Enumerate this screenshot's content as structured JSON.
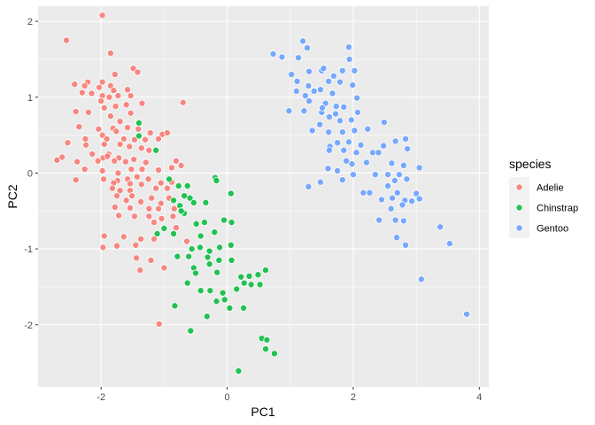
{
  "chart_data": {
    "type": "scatter",
    "title": "",
    "xlabel": "PC1",
    "ylabel": "PC2",
    "xlim": [
      -3.0,
      4.15
    ],
    "ylim": [
      -2.82,
      2.2
    ],
    "x_ticks": [
      -2,
      0,
      2,
      4
    ],
    "y_ticks": [
      -2,
      -1,
      0,
      1,
      2
    ],
    "grid": true,
    "legend": {
      "title": "species",
      "position": "right"
    },
    "series": [
      {
        "name": "Adelie",
        "color": "#F8766D",
        "points": [
          [
            -1.98,
            2.08
          ],
          [
            -2.55,
            1.75
          ],
          [
            -1.85,
            1.58
          ],
          [
            -1.49,
            1.38
          ],
          [
            -1.78,
            1.3
          ],
          [
            -1.42,
            1.33
          ],
          [
            -2.21,
            1.2
          ],
          [
            -2.42,
            1.17
          ],
          [
            -2.26,
            1.15
          ],
          [
            -1.98,
            1.2
          ],
          [
            -2.03,
            1.13
          ],
          [
            -1.85,
            1.15
          ],
          [
            -1.8,
            1.09
          ],
          [
            -1.58,
            1.1
          ],
          [
            -1.53,
            1.02
          ],
          [
            -2.3,
            1.06
          ],
          [
            -2.15,
            1.05
          ],
          [
            -1.98,
            1.02
          ],
          [
            -1.87,
            1.0
          ],
          [
            -1.73,
            1.02
          ],
          [
            -0.7,
            0.93
          ],
          [
            -2.0,
            0.95
          ],
          [
            -1.95,
            0.86
          ],
          [
            -1.77,
            0.88
          ],
          [
            -1.6,
            0.9
          ],
          [
            -1.35,
            0.92
          ],
          [
            -2.4,
            0.81
          ],
          [
            -2.2,
            0.8
          ],
          [
            -1.85,
            0.75
          ],
          [
            -1.7,
            0.68
          ],
          [
            -1.53,
            0.79
          ],
          [
            -2.35,
            0.61
          ],
          [
            -2.04,
            0.58
          ],
          [
            -1.81,
            0.59
          ],
          [
            -1.58,
            0.6
          ],
          [
            -1.41,
            0.58
          ],
          [
            -1.98,
            0.5
          ],
          [
            -1.76,
            0.55
          ],
          [
            -1.22,
            0.53
          ],
          [
            -1.03,
            0.51
          ],
          [
            -0.95,
            0.53
          ],
          [
            -1.09,
            0.45
          ],
          [
            -2.25,
            0.45
          ],
          [
            -1.91,
            0.45
          ],
          [
            -1.64,
            0.45
          ],
          [
            -1.47,
            0.44
          ],
          [
            -1.3,
            0.44
          ],
          [
            -2.53,
            0.4
          ],
          [
            -2.24,
            0.37
          ],
          [
            -1.95,
            0.38
          ],
          [
            -1.7,
            0.38
          ],
          [
            -1.55,
            0.35
          ],
          [
            -1.36,
            0.33
          ],
          [
            -1.24,
            0.3
          ],
          [
            -1.88,
            0.25
          ],
          [
            -2.14,
            0.25
          ],
          [
            -1.97,
            0.2
          ],
          [
            -1.72,
            0.2
          ],
          [
            -1.48,
            0.18
          ],
          [
            -1.9,
            0.22
          ],
          [
            -2.62,
            0.21
          ],
          [
            -2.05,
            0.16
          ],
          [
            -1.79,
            0.16
          ],
          [
            -1.61,
            0.15
          ],
          [
            -1.29,
            0.14
          ],
          [
            -2.7,
            0.17
          ],
          [
            -2.38,
            0.15
          ],
          [
            -0.81,
            0.16
          ],
          [
            -2.26,
            0.05
          ],
          [
            -1.98,
            0.03
          ],
          [
            -1.73,
            0.0
          ],
          [
            -1.52,
            0.05
          ],
          [
            -1.35,
            0.05
          ],
          [
            -0.73,
            0.1
          ],
          [
            -0.88,
            0.07
          ],
          [
            -1.09,
            0.04
          ],
          [
            -1.96,
            -0.08
          ],
          [
            -1.74,
            -0.1
          ],
          [
            -1.58,
            -0.08
          ],
          [
            -1.43,
            -0.05
          ],
          [
            -1.25,
            -0.08
          ],
          [
            -2.4,
            -0.09
          ],
          [
            -1.8,
            -0.13
          ],
          [
            -1.54,
            -0.14
          ],
          [
            -1.36,
            -0.15
          ],
          [
            -1.05,
            -0.13
          ],
          [
            -0.88,
            -0.12
          ],
          [
            -1.82,
            -0.2
          ],
          [
            -1.7,
            -0.23
          ],
          [
            -1.54,
            -0.23
          ],
          [
            -1.13,
            -0.2
          ],
          [
            -0.95,
            -0.2
          ],
          [
            -1.75,
            -0.3
          ],
          [
            -1.51,
            -0.3
          ],
          [
            -1.2,
            -0.33
          ],
          [
            -0.92,
            -0.33
          ],
          [
            -1.6,
            -0.36
          ],
          [
            -1.37,
            -0.38
          ],
          [
            -1.05,
            -0.4
          ],
          [
            -1.78,
            -0.45
          ],
          [
            -1.54,
            -0.46
          ],
          [
            -1.24,
            -0.47
          ],
          [
            -1.09,
            -0.47
          ],
          [
            -0.84,
            -0.47
          ],
          [
            -1.72,
            -0.56
          ],
          [
            -1.47,
            -0.57
          ],
          [
            -1.24,
            -0.57
          ],
          [
            -1.04,
            -0.6
          ],
          [
            -1.16,
            -0.65
          ],
          [
            -0.86,
            -0.57
          ],
          [
            -0.81,
            -0.72
          ],
          [
            -1.95,
            -0.83
          ],
          [
            -1.64,
            -0.84
          ],
          [
            -1.37,
            -0.87
          ],
          [
            -1.16,
            -0.87
          ],
          [
            -1.97,
            -0.98
          ],
          [
            -1.75,
            -0.96
          ],
          [
            -1.45,
            -0.95
          ],
          [
            -0.64,
            -0.9
          ],
          [
            -1.44,
            -1.12
          ],
          [
            -1.38,
            -1.28
          ],
          [
            -1.21,
            -1.15
          ],
          [
            -1.0,
            -1.25
          ],
          [
            -1.08,
            -1.99
          ]
        ]
      },
      {
        "name": "Chinstrap",
        "color": "#00BA38",
        "points": [
          [
            -1.4,
            0.66
          ],
          [
            -1.4,
            0.49
          ],
          [
            -1.13,
            0.3
          ],
          [
            -0.92,
            -0.08
          ],
          [
            -0.63,
            -0.17
          ],
          [
            -0.77,
            -0.17
          ],
          [
            -0.19,
            -0.06
          ],
          [
            -0.17,
            -0.1
          ],
          [
            -0.68,
            -0.3
          ],
          [
            -0.59,
            -0.33
          ],
          [
            -0.85,
            -0.36
          ],
          [
            -0.75,
            -0.43
          ],
          [
            -0.53,
            -0.39
          ],
          [
            -0.68,
            -0.53
          ],
          [
            -0.73,
            -0.5
          ],
          [
            -0.34,
            -0.39
          ],
          [
            0.06,
            -0.27
          ],
          [
            -1.0,
            -0.73
          ],
          [
            -1.11,
            -0.8
          ],
          [
            -0.85,
            -0.8
          ],
          [
            -0.36,
            -0.65
          ],
          [
            -0.49,
            -0.67
          ],
          [
            -0.05,
            -0.62
          ],
          [
            -0.2,
            -0.78
          ],
          [
            -0.42,
            -0.83
          ],
          [
            0.07,
            -0.65
          ],
          [
            -0.43,
            -0.98
          ],
          [
            -0.56,
            -1.0
          ],
          [
            -0.28,
            -1.03
          ],
          [
            -0.12,
            -0.98
          ],
          [
            0.06,
            -0.95
          ],
          [
            -0.79,
            -1.1
          ],
          [
            -0.61,
            -1.1
          ],
          [
            -0.31,
            -1.11
          ],
          [
            -0.13,
            -1.15
          ],
          [
            0.07,
            -1.15
          ],
          [
            -0.53,
            -1.25
          ],
          [
            -0.28,
            -1.2
          ],
          [
            -0.5,
            -1.32
          ],
          [
            -0.16,
            -1.31
          ],
          [
            0.22,
            -1.37
          ],
          [
            0.35,
            -1.36
          ],
          [
            0.49,
            -1.34
          ],
          [
            0.61,
            -1.28
          ],
          [
            -0.63,
            -1.45
          ],
          [
            -0.42,
            -1.55
          ],
          [
            -0.27,
            -1.55
          ],
          [
            -0.07,
            -1.58
          ],
          [
            0.15,
            -1.53
          ],
          [
            0.27,
            -1.45
          ],
          [
            0.38,
            -1.47
          ],
          [
            0.52,
            -1.47
          ],
          [
            -0.04,
            -1.67
          ],
          [
            -0.17,
            -1.69
          ],
          [
            0.04,
            -1.78
          ],
          [
            0.26,
            -1.78
          ],
          [
            -0.83,
            -1.75
          ],
          [
            -0.32,
            -1.89
          ],
          [
            -0.58,
            -2.08
          ],
          [
            0.55,
            -2.18
          ],
          [
            0.63,
            -2.2
          ],
          [
            0.61,
            -2.32
          ],
          [
            0.75,
            -2.38
          ],
          [
            0.18,
            -2.61
          ]
        ]
      },
      {
        "name": "Gentoo",
        "color": "#619CFF",
        "points": [
          [
            0.73,
            1.57
          ],
          [
            0.87,
            1.53
          ],
          [
            1.2,
            1.74
          ],
          [
            1.27,
            1.65
          ],
          [
            1.13,
            1.52
          ],
          [
            1.3,
            1.34
          ],
          [
            1.02,
            1.3
          ],
          [
            1.11,
            1.21
          ],
          [
            1.5,
            1.35
          ],
          [
            1.53,
            1.38
          ],
          [
            1.69,
            1.28
          ],
          [
            1.83,
            1.35
          ],
          [
            1.93,
            1.66
          ],
          [
            1.94,
            1.5
          ],
          [
            2.02,
            1.35
          ],
          [
            1.61,
            1.21
          ],
          [
            1.79,
            1.2
          ],
          [
            1.99,
            1.16
          ],
          [
            1.29,
            1.15
          ],
          [
            1.48,
            1.1
          ],
          [
            1.67,
            1.05
          ],
          [
            1.1,
            1.08
          ],
          [
            1.24,
            1.02
          ],
          [
            1.38,
            1.08
          ],
          [
            1.3,
            0.95
          ],
          [
            1.56,
            0.92
          ],
          [
            1.73,
            0.88
          ],
          [
            1.85,
            0.87
          ],
          [
            2.06,
            0.99
          ],
          [
            2.07,
            0.8
          ],
          [
            1.72,
            0.78
          ],
          [
            1.5,
            0.8
          ],
          [
            0.98,
            0.82
          ],
          [
            1.22,
            0.82
          ],
          [
            1.51,
            0.86
          ],
          [
            1.62,
            0.74
          ],
          [
            1.79,
            0.69
          ],
          [
            1.97,
            0.7
          ],
          [
            1.47,
            0.64
          ],
          [
            1.35,
            0.56
          ],
          [
            1.61,
            0.54
          ],
          [
            1.83,
            0.54
          ],
          [
            2.02,
            0.56
          ],
          [
            2.23,
            0.58
          ],
          [
            2.49,
            0.67
          ],
          [
            1.75,
            0.4
          ],
          [
            1.93,
            0.41
          ],
          [
            2.12,
            0.37
          ],
          [
            2.48,
            0.36
          ],
          [
            2.67,
            0.42
          ],
          [
            2.83,
            0.45
          ],
          [
            2.86,
            0.32
          ],
          [
            1.63,
            0.35
          ],
          [
            1.62,
            0.3
          ],
          [
            1.85,
            0.3
          ],
          [
            2.05,
            0.27
          ],
          [
            2.31,
            0.27
          ],
          [
            2.4,
            0.27
          ],
          [
            1.98,
            0.12
          ],
          [
            1.89,
            0.16
          ],
          [
            2.21,
            0.14
          ],
          [
            2.61,
            0.13
          ],
          [
            2.8,
            0.1
          ],
          [
            3.05,
            0.07
          ],
          [
            1.6,
            0.06
          ],
          [
            1.75,
            0.03
          ],
          [
            2.0,
            -0.02
          ],
          [
            2.35,
            -0.02
          ],
          [
            2.55,
            -0.02
          ],
          [
            2.73,
            -0.02
          ],
          [
            1.48,
            -0.12
          ],
          [
            1.29,
            -0.18
          ],
          [
            1.83,
            -0.09
          ],
          [
            2.66,
            -0.1
          ],
          [
            2.85,
            -0.08
          ],
          [
            2.55,
            -0.17
          ],
          [
            2.7,
            -0.26
          ],
          [
            3.0,
            -0.27
          ],
          [
            2.16,
            -0.26
          ],
          [
            2.26,
            -0.26
          ],
          [
            2.62,
            -0.33
          ],
          [
            2.45,
            -0.35
          ],
          [
            2.82,
            -0.36
          ],
          [
            2.93,
            -0.37
          ],
          [
            2.78,
            -0.42
          ],
          [
            2.6,
            -0.47
          ],
          [
            3.05,
            -0.34
          ],
          [
            2.41,
            -0.62
          ],
          [
            2.67,
            -0.62
          ],
          [
            2.8,
            -0.63
          ],
          [
            3.38,
            -0.71
          ],
          [
            3.53,
            -0.93
          ],
          [
            2.69,
            -0.85
          ],
          [
            2.83,
            -0.95
          ],
          [
            3.08,
            -1.4
          ],
          [
            3.8,
            -1.86
          ]
        ]
      }
    ]
  }
}
